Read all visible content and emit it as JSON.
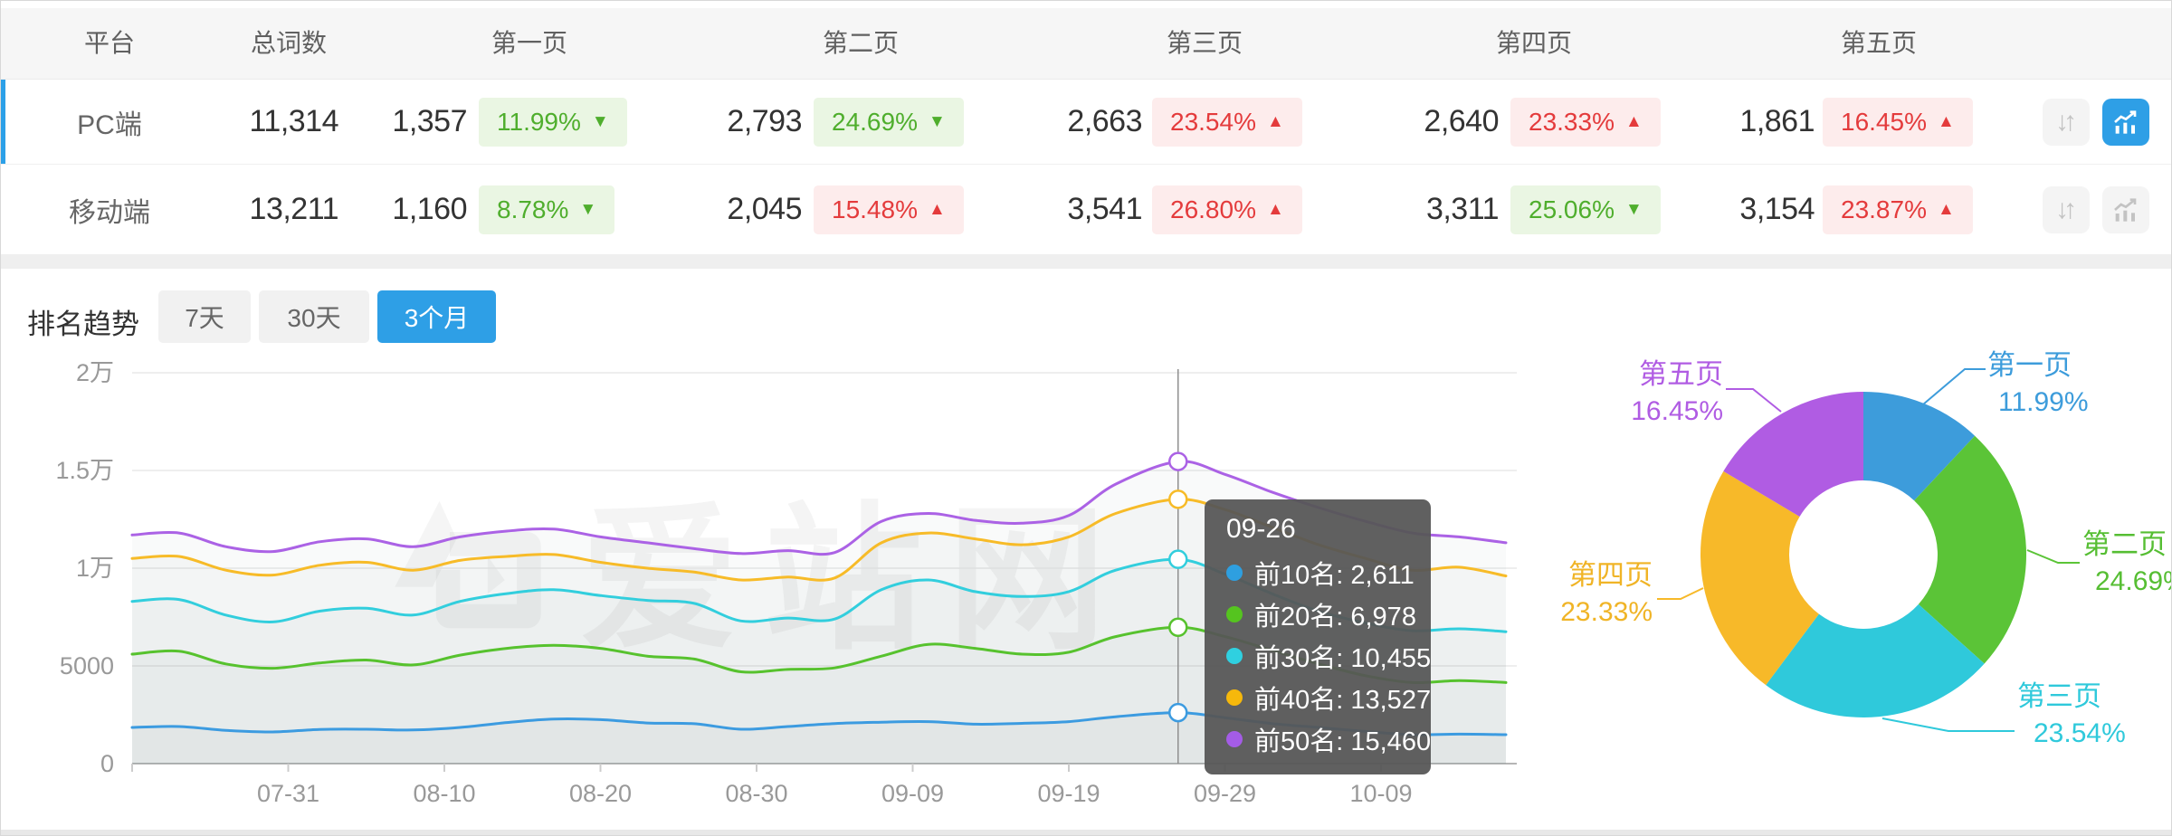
{
  "page": {
    "watermark": "爱站网"
  },
  "colors": {
    "accent_blue": "#2E9FE6",
    "badge_green_text": "#4fae2d",
    "badge_green_bg": "#eaf6e3",
    "badge_red_text": "#e43b3c",
    "badge_red_bg": "#fdecec"
  },
  "table": {
    "headers": [
      "平台",
      "总词数",
      "第一页",
      "第二页",
      "第三页",
      "第四页",
      "第五页"
    ],
    "action_icons": {
      "compare": "up-down-arrows-icon",
      "trend": "line-chart-icon"
    },
    "rows": [
      {
        "platform": "PC端",
        "total": "11,314",
        "selected": true,
        "pages": [
          {
            "value": "1,357",
            "pct": "11.99%",
            "dir": "down",
            "tone": "green"
          },
          {
            "value": "2,793",
            "pct": "24.69%",
            "dir": "down",
            "tone": "green"
          },
          {
            "value": "2,663",
            "pct": "23.54%",
            "dir": "up",
            "tone": "red"
          },
          {
            "value": "2,640",
            "pct": "23.33%",
            "dir": "up",
            "tone": "red"
          },
          {
            "value": "1,861",
            "pct": "16.45%",
            "dir": "up",
            "tone": "red"
          }
        ]
      },
      {
        "platform": "移动端",
        "total": "13,211",
        "selected": false,
        "pages": [
          {
            "value": "1,160",
            "pct": "8.78%",
            "dir": "down",
            "tone": "green"
          },
          {
            "value": "2,045",
            "pct": "15.48%",
            "dir": "up",
            "tone": "red"
          },
          {
            "value": "3,541",
            "pct": "26.80%",
            "dir": "up",
            "tone": "red"
          },
          {
            "value": "3,311",
            "pct": "25.06%",
            "dir": "down",
            "tone": "green"
          },
          {
            "value": "3,154",
            "pct": "23.87%",
            "dir": "up",
            "tone": "red"
          }
        ]
      }
    ]
  },
  "trend_section": {
    "title": "排名趋势",
    "tabs": [
      {
        "label": "7天",
        "active": false
      },
      {
        "label": "30天",
        "active": false
      },
      {
        "label": "3个月",
        "active": true
      }
    ]
  },
  "tooltip": {
    "date": "09-26",
    "items": [
      {
        "label": "前10名",
        "value": "2,611",
        "color": "#2E9FE0"
      },
      {
        "label": "前20名",
        "value": "6,978",
        "color": "#55C41F"
      },
      {
        "label": "前30名",
        "value": "10,455",
        "color": "#2FD0E0"
      },
      {
        "label": "前40名",
        "value": "13,527",
        "color": "#F6B80B"
      },
      {
        "label": "前50名",
        "value": "15,460",
        "color": "#A45CE6"
      }
    ]
  },
  "chart_data": [
    {
      "type": "line",
      "title": "排名趋势（3个月）",
      "grid": true,
      "legend": "none",
      "ylim": [
        0,
        20000
      ],
      "yticks": [
        {
          "v": 0,
          "label": "0"
        },
        {
          "v": 5000,
          "label": "5000"
        },
        {
          "v": 10000,
          "label": "1万"
        },
        {
          "v": 15000,
          "label": "1.5万"
        },
        {
          "v": 20000,
          "label": "2万"
        }
      ],
      "xticks": [
        "07-31",
        "08-10",
        "08-20",
        "08-30",
        "09-09",
        "09-19",
        "09-29",
        "10-09"
      ],
      "hover_date": "09-26",
      "x": [
        "07-21",
        "07-24",
        "07-27",
        "07-30",
        "08-02",
        "08-05",
        "08-08",
        "08-11",
        "08-14",
        "08-17",
        "08-20",
        "08-23",
        "08-26",
        "08-29",
        "09-01",
        "09-04",
        "09-07",
        "09-10",
        "09-13",
        "09-16",
        "09-19",
        "09-22",
        "09-26",
        "09-29",
        "10-02",
        "10-05",
        "10-08",
        "10-11",
        "10-14",
        "10-17"
      ],
      "series": [
        {
          "name": "前10名",
          "color": "#3C9BE0",
          "values": [
            1850,
            1900,
            1700,
            1620,
            1750,
            1760,
            1720,
            1850,
            2100,
            2280,
            2250,
            2080,
            2040,
            1760,
            1900,
            2050,
            2120,
            2150,
            2020,
            2060,
            2150,
            2400,
            2611,
            2350,
            2050,
            1850,
            1650,
            1480,
            1510,
            1480
          ]
        },
        {
          "name": "前20名",
          "color": "#57C22E",
          "values": [
            5600,
            5750,
            5100,
            4880,
            5150,
            5300,
            5050,
            5550,
            5900,
            6050,
            5900,
            5500,
            5350,
            4700,
            4820,
            4900,
            5500,
            6100,
            5900,
            5600,
            5700,
            6500,
            6978,
            6500,
            5800,
            5100,
            4500,
            4150,
            4250,
            4150
          ]
        },
        {
          "name": "前30名",
          "color": "#32CEDD",
          "values": [
            8300,
            8400,
            7600,
            7250,
            7800,
            7950,
            7600,
            8300,
            8700,
            8900,
            8600,
            8350,
            8200,
            7300,
            7450,
            7400,
            8900,
            9400,
            8800,
            8550,
            8800,
            9900,
            10455,
            9700,
            8700,
            7800,
            7200,
            6800,
            6900,
            6750
          ]
        },
        {
          "name": "前40名",
          "color": "#F7BB28",
          "values": [
            10500,
            10600,
            9900,
            9650,
            10150,
            10300,
            9900,
            10400,
            10600,
            10700,
            10300,
            10000,
            9800,
            9400,
            9550,
            9500,
            11300,
            11800,
            11500,
            11200,
            11600,
            12800,
            13527,
            13000,
            12100,
            11200,
            10500,
            9900,
            10050,
            9600
          ]
        },
        {
          "name": "前50名",
          "color": "#AB62E5",
          "values": [
            11700,
            11800,
            11100,
            10850,
            11350,
            11500,
            11100,
            11600,
            11900,
            12000,
            11600,
            11300,
            11000,
            10750,
            10900,
            10800,
            12400,
            12800,
            12450,
            12300,
            12700,
            14300,
            15460,
            14800,
            13900,
            13100,
            12400,
            11800,
            11600,
            11300
          ]
        }
      ]
    },
    {
      "type": "pie",
      "donut": true,
      "items": [
        {
          "label": "第一页",
          "pct": 11.99,
          "pct_label": "11.99%",
          "color": "#3D9CDB"
        },
        {
          "label": "第二页",
          "pct": 24.69,
          "pct_label": "24.69%",
          "color": "#5BC437"
        },
        {
          "label": "第三页",
          "pct": 23.54,
          "pct_label": "23.54%",
          "color": "#2FC9DB"
        },
        {
          "label": "第四页",
          "pct": 23.33,
          "pct_label": "23.33%",
          "color": "#F7B929"
        },
        {
          "label": "第五页",
          "pct": 16.45,
          "pct_label": "16.45%",
          "color": "#B05CE3"
        }
      ]
    }
  ]
}
